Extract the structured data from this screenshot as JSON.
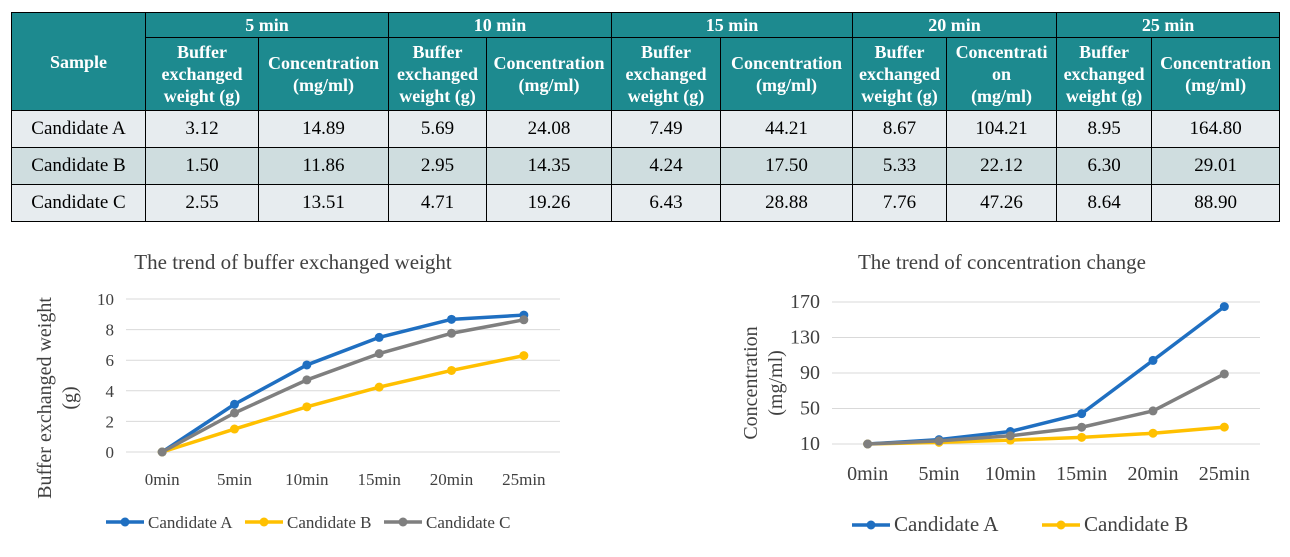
{
  "table": {
    "sample_header": "Sample",
    "time_headers": [
      "5 min",
      "10 min",
      "15 min",
      "20 min",
      "25 min"
    ],
    "sub_headers": [
      [
        "Buffer",
        "exchanged",
        "weight (g)"
      ],
      [
        "Concentration",
        "(mg/ml)"
      ],
      [
        "Buffer",
        "exchanged",
        "weight (g)"
      ],
      [
        "Concentration",
        "(mg/ml)"
      ],
      [
        "Buffer",
        "exchanged",
        "weight (g)"
      ],
      [
        "Concentration",
        "(mg/ml)"
      ],
      [
        "Buffer",
        "exchanged",
        "weight (g)"
      ],
      [
        "Concentrati",
        "on",
        "(mg/ml)"
      ],
      [
        "Buffer",
        "exchanged",
        "weight (g)"
      ],
      [
        "Concentration",
        "(mg/ml)"
      ]
    ],
    "rows": [
      {
        "sample": "Candidate A",
        "cells": [
          "3.12",
          "14.89",
          "5.69",
          "24.08",
          "7.49",
          "44.21",
          "8.67",
          "104.21",
          "8.95",
          "164.80"
        ]
      },
      {
        "sample": "Candidate B",
        "cells": [
          "1.50",
          "11.86",
          "2.95",
          "14.35",
          "4.24",
          "17.50",
          "5.33",
          "22.12",
          "6.30",
          "29.01"
        ]
      },
      {
        "sample": "Candidate C",
        "cells": [
          "2.55",
          "13.51",
          "4.71",
          "19.26",
          "6.43",
          "28.88",
          "7.76",
          "47.26",
          "8.64",
          "88.90"
        ]
      }
    ]
  },
  "chart_data": [
    {
      "type": "line",
      "title": "The trend of buffer exchanged weight",
      "ylabel": [
        "Buffer exchanged weight",
        "(g)"
      ],
      "xlabel": "",
      "categories": [
        "0min",
        "5min",
        "10min",
        "15min",
        "20min",
        "25min"
      ],
      "ylim": [
        0,
        10
      ],
      "yticks": [
        0,
        2,
        4,
        6,
        8,
        10
      ],
      "grid": true,
      "legend": "bottom",
      "series": [
        {
          "name": "Candidate A",
          "color": "#1f6fc1",
          "values": [
            0,
            3.12,
            5.69,
            7.49,
            8.67,
            8.95
          ]
        },
        {
          "name": "Candidate B",
          "color": "#ffc000",
          "values": [
            0,
            1.5,
            2.95,
            4.24,
            5.33,
            6.3
          ]
        },
        {
          "name": "Candidate C",
          "color": "#7f7f7f",
          "values": [
            0,
            2.55,
            4.71,
            6.43,
            7.76,
            8.64
          ]
        }
      ]
    },
    {
      "type": "line",
      "title": "The trend of concentration change",
      "ylabel": [
        "Concentration",
        "(mg/ml)"
      ],
      "xlabel": "",
      "categories": [
        "0min",
        "5min",
        "10min",
        "15min",
        "20min",
        "25min"
      ],
      "ylim": [
        10,
        170
      ],
      "yticks": [
        10,
        50,
        90,
        130,
        170
      ],
      "grid": true,
      "legend": "bottom",
      "series": [
        {
          "name": "Candidate A",
          "color": "#1f6fc1",
          "legend": true,
          "values": [
            10,
            14.89,
            24.08,
            44.21,
            104.21,
            164.8
          ]
        },
        {
          "name": "Candidate B",
          "color": "#ffc000",
          "legend": true,
          "values": [
            10,
            11.86,
            14.35,
            17.5,
            22.12,
            29.01
          ]
        },
        {
          "name": "Candidate C",
          "color": "#7f7f7f",
          "legend": false,
          "values": [
            10,
            13.51,
            19.26,
            28.88,
            47.26,
            88.9
          ]
        }
      ]
    }
  ]
}
